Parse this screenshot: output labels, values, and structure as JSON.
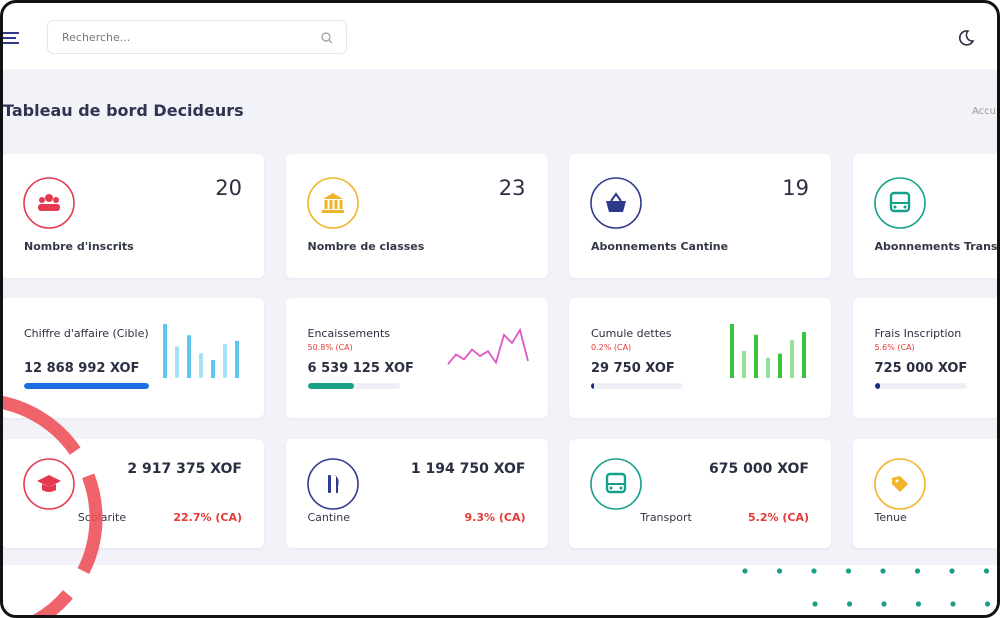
{
  "header": {
    "search_placeholder": "Recherche..."
  },
  "page": {
    "title": "Tableau de bord Decideurs",
    "breadcrumb": "Accu"
  },
  "stat_cards": [
    {
      "value": 20,
      "label": "Nombre d'inscrits"
    },
    {
      "value": 23,
      "label": "Nombre de classes"
    },
    {
      "value": 19,
      "label": "Abonnements Cantine"
    },
    {
      "label": "Abonnements Transport"
    }
  ],
  "finance_cards": [
    {
      "title": "Chiffre d'affaire (Cible)",
      "amount": "12 868 992 XOF",
      "progress": 100,
      "sparkline": {
        "type": "bar",
        "color": "#5ec8ee",
        "values": [
          48,
          28,
          38,
          22,
          16,
          30,
          33
        ]
      }
    },
    {
      "title": "Encaissements",
      "share": "50.8% (CA)",
      "amount": "6 539 125 XOF",
      "progress": 50.8,
      "sparkline": {
        "type": "line",
        "color": "#e055c8",
        "values": [
          6,
          12,
          9,
          15,
          11,
          14,
          7,
          24,
          19,
          27,
          8
        ]
      }
    },
    {
      "title": "Cumule dettes",
      "share": "0.2% (CA)",
      "amount": "29 750 XOF",
      "progress": 0.2,
      "sparkline": {
        "type": "bar",
        "color": "#3cc43c",
        "values": [
          40,
          20,
          32,
          15,
          18,
          28,
          34
        ]
      }
    },
    {
      "title": "Frais Inscription",
      "share": "5.6% (CA)",
      "amount": "725 000 XOF",
      "progress": 5.6
    }
  ],
  "revenue_cards": [
    {
      "amount": "2 917 375 XOF",
      "label": "Scolarite",
      "share": "22.7% (CA)"
    },
    {
      "amount": "1 194 750 XOF",
      "label": "Cantine",
      "share": "9.3% (CA)"
    },
    {
      "amount": "675 000 XOF",
      "label": "Transport",
      "share": "5.2% (CA)"
    },
    {
      "label": "Tenue"
    }
  ]
}
